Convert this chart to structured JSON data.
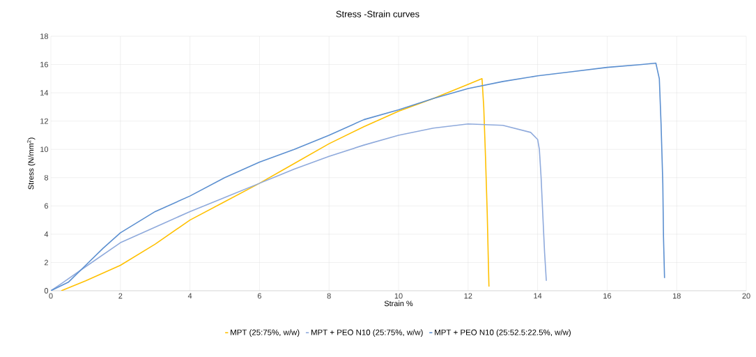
{
  "chart_data": {
    "type": "line",
    "title": "Stress -Strain curves",
    "xlabel": "Strain %",
    "ylabel": "Stress (N/mm$^{2}$)",
    "xlim": [
      0,
      20
    ],
    "xticks": [
      0,
      2,
      4,
      6,
      8,
      10,
      12,
      14,
      16,
      18,
      20
    ],
    "ylim": [
      0,
      18
    ],
    "yticks": [
      0,
      2,
      4,
      6,
      8,
      10,
      12,
      14,
      16,
      18
    ],
    "grid": true,
    "legend": "bottom",
    "marker": "none",
    "line_style": "solid",
    "series": [
      {
        "name": "MPT (25:75%, w/w)",
        "color": "#ffc000",
        "x": [
          0.3,
          1,
          2,
          3,
          4,
          5,
          6,
          7,
          8,
          9,
          10,
          11,
          12,
          12.4,
          12.45,
          12.5,
          12.55,
          12.58,
          12.6
        ],
        "values": [
          0,
          0.7,
          1.8,
          3.3,
          5,
          6.3,
          7.6,
          9,
          10.4,
          11.6,
          12.7,
          13.6,
          14.6,
          15.0,
          13,
          9.5,
          5.5,
          2.3,
          0.3
        ]
      },
      {
        "name": "MPT + PEO N10 (25:75%, w/w)",
        "color": "#8faadc",
        "x": [
          0,
          0.3,
          1,
          2,
          3,
          4,
          5,
          6,
          7,
          8,
          9,
          10,
          11,
          12,
          13,
          13.8,
          14,
          14.05,
          14.1,
          14.15,
          14.2,
          14.25
        ],
        "values": [
          0,
          0.5,
          1.7,
          3.4,
          4.5,
          5.6,
          6.6,
          7.6,
          8.6,
          9.5,
          10.3,
          11,
          11.5,
          11.8,
          11.7,
          11.2,
          10.7,
          10,
          8,
          5.3,
          2.7,
          0.7
        ]
      },
      {
        "name": "MPT + PEO N10 (25:52.5:22.5%, w/w)",
        "color": "#5b8fd0",
        "x": [
          0,
          0.5,
          1,
          1.5,
          2,
          3,
          4,
          5,
          6,
          7,
          8,
          9,
          10,
          11,
          12,
          13,
          14,
          15,
          16,
          17,
          17.4,
          17.5,
          17.55,
          17.6,
          17.62,
          17.65
        ],
        "values": [
          0,
          0.6,
          1.8,
          3,
          4.1,
          5.6,
          6.7,
          8,
          9.1,
          10,
          11,
          12.1,
          12.8,
          13.6,
          14.3,
          14.8,
          15.2,
          15.5,
          15.8,
          16.0,
          16.1,
          15,
          11.8,
          7.6,
          3.8,
          0.9
        ]
      }
    ]
  }
}
